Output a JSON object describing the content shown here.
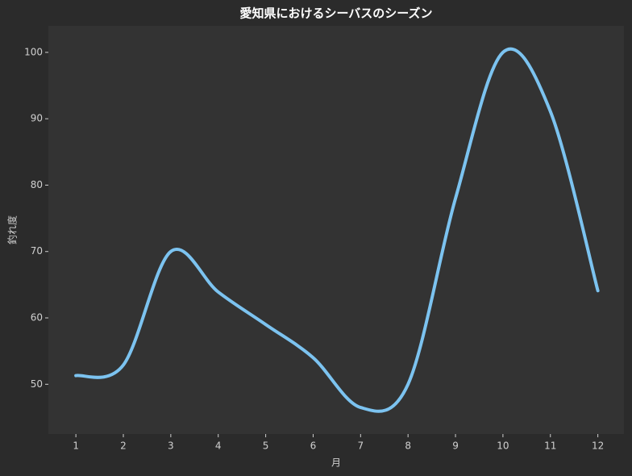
{
  "chart_data": {
    "type": "line",
    "title": "愛知県におけるシーバスのシーズン",
    "x_label": "月",
    "y_label": "釣れ度",
    "x": [
      1,
      2,
      3,
      4,
      5,
      6,
      7,
      8,
      9,
      10,
      11,
      12
    ],
    "series": [
      {
        "name": "釣れ度",
        "color": "#7cc3f0",
        "values": [
          51.3,
          52.9,
          70,
          63.9,
          59,
          54,
          46.5,
          50,
          78,
          100,
          91.1,
          64.1
        ]
      }
    ],
    "xlim": [
      0.42,
      12.55
    ],
    "ylim": [
      42.5,
      104
    ],
    "xticks": [
      1,
      2,
      3,
      4,
      5,
      6,
      7,
      8,
      9,
      10,
      11,
      12
    ],
    "yticks": [
      50,
      60,
      70,
      80,
      90,
      100
    ],
    "grid": false
  }
}
